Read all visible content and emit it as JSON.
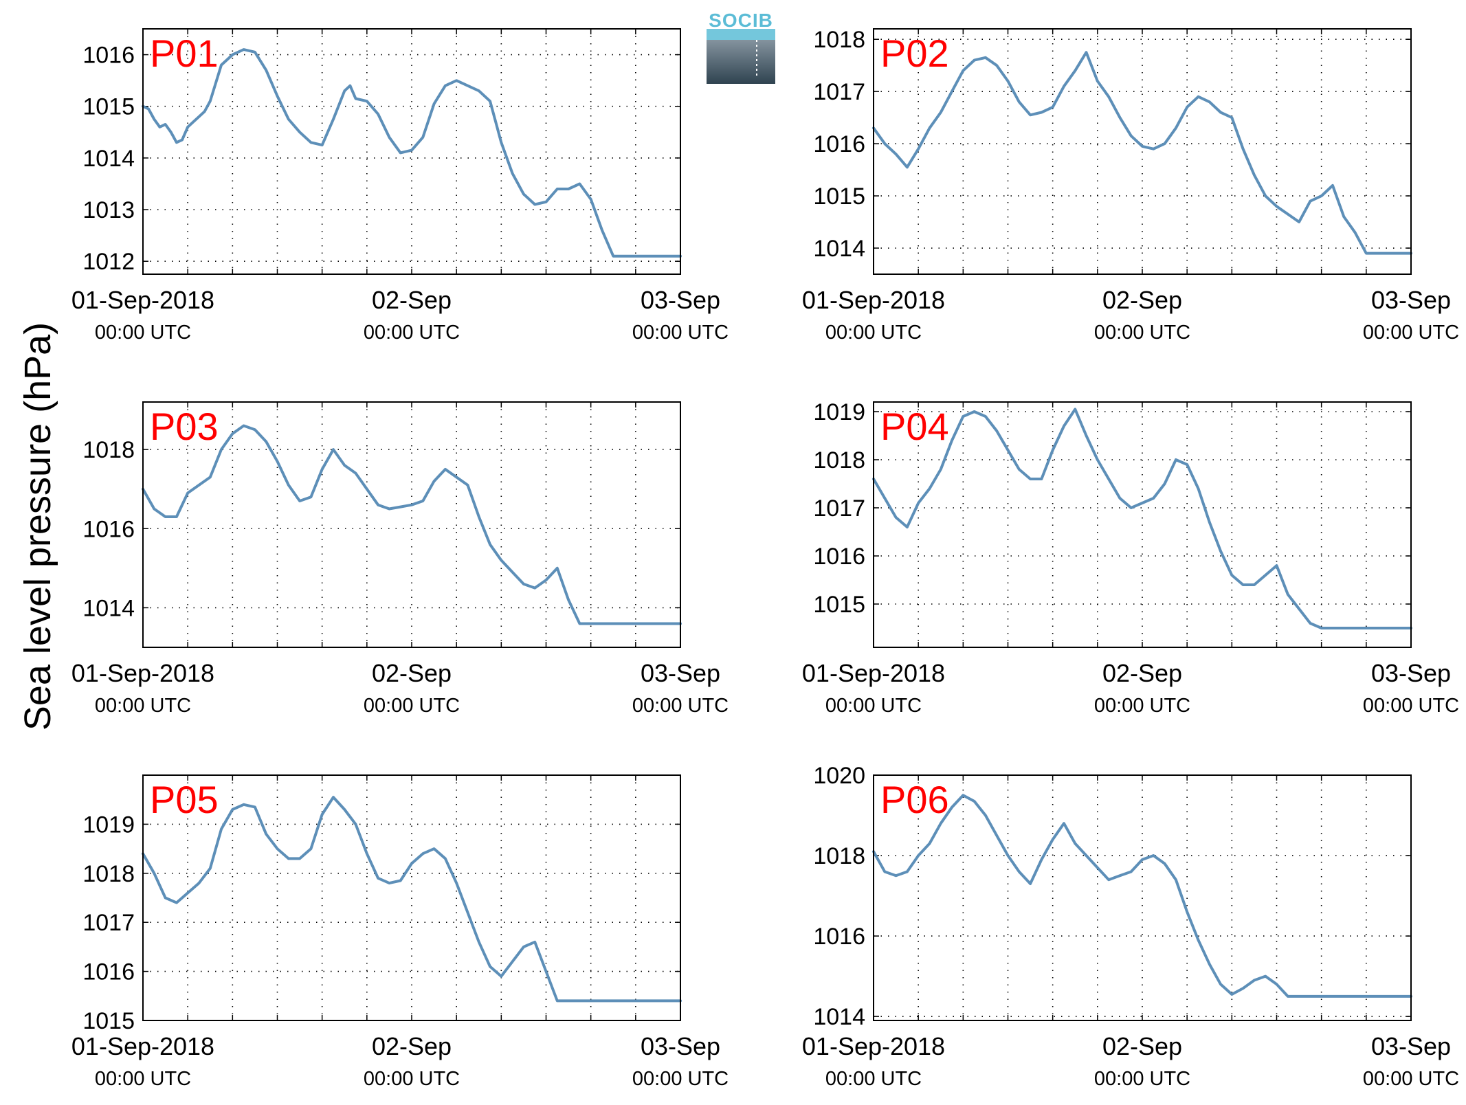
{
  "figure": {
    "ylabel": "Sea level pressure (hPa)",
    "logo_text": "SOCIB",
    "colors": {
      "line": "#5d8fb8",
      "panel_label": "#ff0000",
      "grid": "#000000",
      "axes": "#000000"
    }
  },
  "chart_data": [
    {
      "type": "line",
      "title": "P01",
      "xlabel": "",
      "ylabel": "",
      "xlim": [
        0,
        48
      ],
      "ylim": [
        1011.75,
        1016.5
      ],
      "yticks": [
        "1012",
        "1013",
        "1014",
        "1015",
        "1016"
      ],
      "xticks": [
        {
          "label": "01-Sep-2018",
          "sublabel": "00:00 UTC"
        },
        {
          "label": "02-Sep",
          "sublabel": "00:00 UTC"
        },
        {
          "label": "03-Sep",
          "sublabel": "00:00 UTC"
        }
      ],
      "grid": true,
      "x": [
        0,
        0.5,
        1,
        1.5,
        2,
        2.5,
        3,
        3.5,
        4,
        4.5,
        5,
        5.5,
        6,
        7,
        8,
        9,
        10,
        11,
        12,
        13,
        14,
        15,
        16,
        17,
        18,
        18.5,
        19,
        20,
        21,
        22,
        23,
        24,
        25,
        26,
        27,
        28,
        29,
        30,
        31,
        31.5,
        32,
        33,
        34,
        35,
        36,
        37,
        38,
        39,
        40,
        41,
        42,
        43,
        44,
        45,
        46,
        47,
        48
      ],
      "series": [
        {
          "values": [
            1015.0,
            1014.95,
            1014.75,
            1014.6,
            1014.65,
            1014.5,
            1014.3,
            1014.35,
            1014.6,
            1014.7,
            1014.8,
            1014.9,
            1015.1,
            1015.8,
            1016.0,
            1016.1,
            1016.05,
            1015.7,
            1015.2,
            1014.75,
            1014.5,
            1014.3,
            1014.25,
            1014.75,
            1015.3,
            1015.4,
            1015.15,
            1015.1,
            1014.85,
            1014.4,
            1014.1,
            1014.15,
            1014.4,
            1015.05,
            1015.4,
            1015.5,
            1015.4,
            1015.3,
            1015.1,
            1014.7,
            1014.3,
            1013.7,
            1013.3,
            1013.1,
            1013.15,
            1013.4,
            1013.4,
            1013.5,
            1013.2,
            1012.6,
            1012.1,
            1012.1,
            1012.1,
            1012.1,
            1012.1,
            1012.1,
            1012.1
          ]
        }
      ]
    },
    {
      "type": "line",
      "title": "P02",
      "xlabel": "",
      "ylabel": "",
      "xlim": [
        0,
        48
      ],
      "ylim": [
        1013.5,
        1018.2
      ],
      "yticks": [
        "1014",
        "1015",
        "1016",
        "1017",
        "1018"
      ],
      "xticks": [
        {
          "label": "01-Sep-2018",
          "sublabel": "00:00 UTC"
        },
        {
          "label": "02-Sep",
          "sublabel": "00:00 UTC"
        },
        {
          "label": "03-Sep",
          "sublabel": "00:00 UTC"
        }
      ],
      "grid": true,
      "x": [
        0,
        1,
        2,
        3,
        4,
        5,
        6,
        7,
        8,
        9,
        10,
        11,
        12,
        13,
        14,
        15,
        16,
        17,
        18,
        19,
        20,
        21,
        22,
        23,
        24,
        25,
        26,
        27,
        28,
        29,
        30,
        31,
        32,
        33,
        34,
        35,
        36,
        37,
        38,
        39,
        40,
        41,
        42,
        43,
        44,
        45,
        46,
        47,
        48
      ],
      "series": [
        {
          "values": [
            1016.3,
            1016.0,
            1015.8,
            1015.55,
            1015.9,
            1016.3,
            1016.6,
            1017.0,
            1017.4,
            1017.6,
            1017.65,
            1017.5,
            1017.2,
            1016.8,
            1016.55,
            1016.6,
            1016.7,
            1017.1,
            1017.4,
            1017.75,
            1017.2,
            1016.9,
            1016.5,
            1016.15,
            1015.95,
            1015.9,
            1016.0,
            1016.3,
            1016.7,
            1016.9,
            1016.8,
            1016.6,
            1016.5,
            1015.9,
            1015.4,
            1015.0,
            1014.8,
            1014.65,
            1014.5,
            1014.9,
            1015.0,
            1015.2,
            1014.6,
            1014.3,
            1013.9,
            1013.9,
            1013.9,
            1013.9,
            1013.9
          ]
        }
      ]
    },
    {
      "type": "line",
      "title": "P03",
      "xlabel": "",
      "ylabel": "",
      "xlim": [
        0,
        48
      ],
      "ylim": [
        1013.0,
        1019.2
      ],
      "yticks": [
        "1014",
        "1016",
        "1018"
      ],
      "xticks": [
        {
          "label": "01-Sep-2018",
          "sublabel": "00:00 UTC"
        },
        {
          "label": "02-Sep",
          "sublabel": "00:00 UTC"
        },
        {
          "label": "03-Sep",
          "sublabel": "00:00 UTC"
        }
      ],
      "grid": true,
      "x": [
        0,
        1,
        2,
        3,
        4,
        5,
        6,
        7,
        8,
        9,
        10,
        11,
        12,
        13,
        14,
        15,
        16,
        17,
        18,
        19,
        20,
        21,
        22,
        23,
        24,
        25,
        26,
        27,
        28,
        29,
        30,
        31,
        32,
        33,
        34,
        35,
        36,
        37,
        38,
        39,
        40,
        41,
        42,
        43,
        44,
        45,
        46,
        47,
        48
      ],
      "series": [
        {
          "values": [
            1017.0,
            1016.5,
            1016.3,
            1016.3,
            1016.9,
            1017.1,
            1017.3,
            1018.0,
            1018.4,
            1018.6,
            1018.5,
            1018.2,
            1017.7,
            1017.1,
            1016.7,
            1016.8,
            1017.5,
            1018.0,
            1017.6,
            1017.4,
            1017.0,
            1016.6,
            1016.5,
            1016.55,
            1016.6,
            1016.7,
            1017.2,
            1017.5,
            1017.3,
            1017.1,
            1016.3,
            1015.6,
            1015.2,
            1014.9,
            1014.6,
            1014.5,
            1014.7,
            1015.0,
            1014.2,
            1013.6,
            1013.6,
            1013.6,
            1013.6,
            1013.6,
            1013.6,
            1013.6,
            1013.6,
            1013.6,
            1013.6
          ]
        }
      ]
    },
    {
      "type": "line",
      "title": "P04",
      "xlabel": "",
      "ylabel": "",
      "xlim": [
        0,
        48
      ],
      "ylim": [
        1014.1,
        1019.2
      ],
      "yticks": [
        "1015",
        "1016",
        "1017",
        "1018",
        "1019"
      ],
      "xticks": [
        {
          "label": "01-Sep-2018",
          "sublabel": "00:00 UTC"
        },
        {
          "label": "02-Sep",
          "sublabel": "00:00 UTC"
        },
        {
          "label": "03-Sep",
          "sublabel": "00:00 UTC"
        }
      ],
      "grid": true,
      "x": [
        0,
        1,
        2,
        3,
        4,
        5,
        6,
        7,
        8,
        9,
        10,
        11,
        12,
        13,
        14,
        15,
        16,
        17,
        18,
        19,
        20,
        21,
        22,
        23,
        24,
        25,
        26,
        27,
        28,
        29,
        30,
        31,
        32,
        33,
        34,
        35,
        36,
        37,
        38,
        39,
        40,
        41,
        42,
        43,
        44,
        45,
        46,
        47,
        48
      ],
      "series": [
        {
          "values": [
            1017.6,
            1017.2,
            1016.8,
            1016.6,
            1017.1,
            1017.4,
            1017.8,
            1018.4,
            1018.9,
            1019.0,
            1018.9,
            1018.6,
            1018.2,
            1017.8,
            1017.6,
            1017.6,
            1018.2,
            1018.7,
            1019.05,
            1018.5,
            1018.0,
            1017.6,
            1017.2,
            1017.0,
            1017.1,
            1017.2,
            1017.5,
            1018.0,
            1017.9,
            1017.4,
            1016.7,
            1016.1,
            1015.6,
            1015.4,
            1015.4,
            1015.6,
            1015.8,
            1015.2,
            1014.9,
            1014.6,
            1014.5,
            1014.5,
            1014.5,
            1014.5,
            1014.5,
            1014.5,
            1014.5,
            1014.5,
            1014.5
          ]
        }
      ]
    },
    {
      "type": "line",
      "title": "P05",
      "xlabel": "",
      "ylabel": "",
      "xlim": [
        0,
        48
      ],
      "ylim": [
        1015.0,
        1020.0
      ],
      "yticks": [
        "1015",
        "1016",
        "1017",
        "1018",
        "1019"
      ],
      "xticks": [
        {
          "label": "01-Sep-2018",
          "sublabel": "00:00 UTC"
        },
        {
          "label": "02-Sep",
          "sublabel": "00:00 UTC"
        },
        {
          "label": "03-Sep",
          "sublabel": "00:00 UTC"
        }
      ],
      "grid": true,
      "x": [
        0,
        1,
        2,
        3,
        4,
        5,
        6,
        7,
        8,
        9,
        10,
        11,
        12,
        13,
        14,
        15,
        16,
        17,
        18,
        19,
        20,
        21,
        22,
        23,
        24,
        25,
        26,
        27,
        28,
        29,
        30,
        31,
        32,
        33,
        34,
        35,
        36,
        37,
        38,
        39,
        40,
        41,
        42,
        43,
        44,
        45,
        46,
        47,
        48
      ],
      "series": [
        {
          "values": [
            1018.4,
            1018.0,
            1017.5,
            1017.4,
            1017.6,
            1017.8,
            1018.1,
            1018.9,
            1019.3,
            1019.4,
            1019.35,
            1018.8,
            1018.5,
            1018.3,
            1018.3,
            1018.5,
            1019.2,
            1019.55,
            1019.3,
            1019.0,
            1018.4,
            1017.9,
            1017.8,
            1017.85,
            1018.2,
            1018.4,
            1018.5,
            1018.3,
            1017.8,
            1017.2,
            1016.6,
            1016.1,
            1015.9,
            1016.2,
            1016.5,
            1016.6,
            1016.0,
            1015.4,
            1015.4,
            1015.4,
            1015.4,
            1015.4,
            1015.4,
            1015.4,
            1015.4,
            1015.4,
            1015.4,
            1015.4,
            1015.4
          ]
        }
      ]
    },
    {
      "type": "line",
      "title": "P06",
      "xlabel": "",
      "ylabel": "",
      "xlim": [
        0,
        48
      ],
      "ylim": [
        1013.9,
        1020.0
      ],
      "yticks": [
        "1014",
        "1016",
        "1018",
        "1020"
      ],
      "xticks": [
        {
          "label": "01-Sep-2018",
          "sublabel": "00:00 UTC"
        },
        {
          "label": "02-Sep",
          "sublabel": "00:00 UTC"
        },
        {
          "label": "03-Sep",
          "sublabel": "00:00 UTC"
        }
      ],
      "grid": true,
      "x": [
        0,
        1,
        2,
        3,
        4,
        5,
        6,
        7,
        8,
        9,
        10,
        11,
        12,
        13,
        14,
        15,
        16,
        17,
        18,
        19,
        20,
        21,
        22,
        23,
        24,
        25,
        26,
        27,
        28,
        29,
        30,
        31,
        32,
        33,
        34,
        35,
        36,
        37,
        38,
        39,
        40,
        41,
        42,
        43,
        44,
        45,
        46,
        47,
        48
      ],
      "series": [
        {
          "values": [
            1018.1,
            1017.6,
            1017.5,
            1017.6,
            1018.0,
            1018.3,
            1018.8,
            1019.2,
            1019.5,
            1019.35,
            1019.0,
            1018.5,
            1018.0,
            1017.6,
            1017.3,
            1017.9,
            1018.4,
            1018.8,
            1018.3,
            1018.0,
            1017.7,
            1017.4,
            1017.5,
            1017.6,
            1017.9,
            1018.0,
            1017.8,
            1017.4,
            1016.6,
            1015.9,
            1015.3,
            1014.8,
            1014.55,
            1014.7,
            1014.9,
            1015.0,
            1014.8,
            1014.5,
            1014.5,
            1014.5,
            1014.5,
            1014.5,
            1014.5,
            1014.5,
            1014.5,
            1014.5,
            1014.5,
            1014.5,
            1014.5
          ]
        }
      ]
    }
  ]
}
